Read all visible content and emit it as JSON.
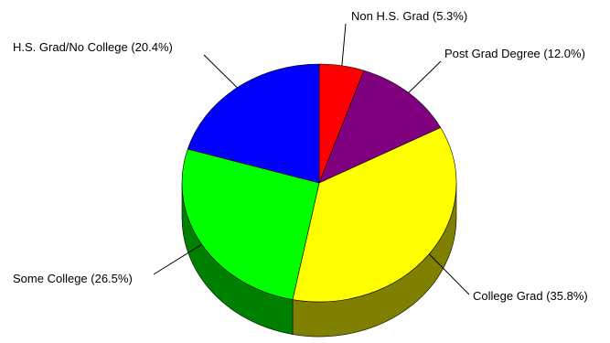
{
  "chart_data": {
    "type": "pie",
    "three_d": true,
    "start_angle_deg": 0,
    "direction": "clockwise",
    "legend": "none",
    "slices": [
      {
        "label": "Non H.S. Grad (5.3%)",
        "value": 5.3,
        "color": "#FF0000",
        "side_color": "#800000"
      },
      {
        "label": "Post Grad Degree (12.0%)",
        "value": 12.0,
        "color": "#800080",
        "side_color": "#400040"
      },
      {
        "label": "College Grad (35.8%)",
        "value": 35.8,
        "color": "#FFFF00",
        "side_color": "#808000"
      },
      {
        "label": "Some College (26.5%)",
        "value": 26.5,
        "color": "#00FF00",
        "side_color": "#008000"
      },
      {
        "label": "H.S. Grad/No College (20.4%)",
        "value": 20.4,
        "color": "#0000FF",
        "side_color": "#000080"
      }
    ]
  }
}
